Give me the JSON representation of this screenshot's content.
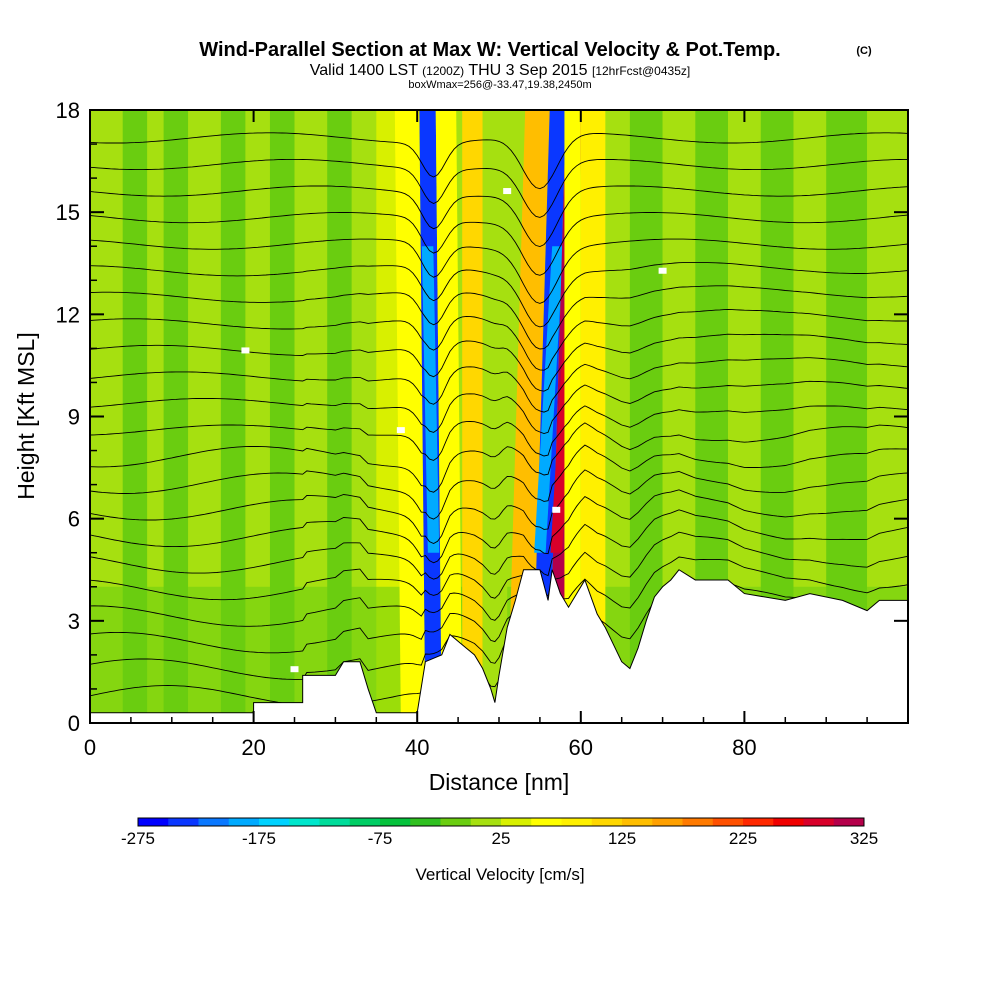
{
  "chart_data": {
    "type": "heatmap",
    "title": "Wind-Parallel Section at Max W: Vertical Velocity & Pot.Temp.",
    "title_tag": "(C)",
    "subtitle_a": "Valid 1400 LST",
    "subtitle_b": "(1200Z)",
    "subtitle_c": "THU 3 Sep 2015",
    "subtitle_d": "[12hrFcst@0435z]",
    "subtitle2": "boxWmax=256@-33.47,19.38,2450m",
    "xlabel": "Distance [nm]",
    "ylabel": "Height [Kft MSL]",
    "xlim": [
      0,
      100
    ],
    "ylim": [
      0,
      18
    ],
    "x_ticks": [
      0,
      20,
      40,
      60,
      80
    ],
    "y_ticks": [
      0,
      3,
      6,
      9,
      12,
      15,
      18
    ],
    "colorbar": {
      "label": "Vertical Velocity [cm/s]",
      "tick_labels": [
        -275,
        -175,
        -75,
        25,
        125,
        225,
        325
      ],
      "range": [
        -275,
        325
      ],
      "colors": [
        "#0000ff",
        "#0a37ff",
        "#0a78ff",
        "#00aaff",
        "#00d2ff",
        "#00e6cc",
        "#00dc9a",
        "#00cd64",
        "#05c23c",
        "#30c020",
        "#6acd10",
        "#a6e010",
        "#d8f000",
        "#ffff00",
        "#fff000",
        "#ffd700",
        "#ffbe00",
        "#ffa000",
        "#ff7a00",
        "#ff5000",
        "#ff2800",
        "#f00000",
        "#d8002a",
        "#b4004a"
      ]
    },
    "vertical_velocity_features": [
      {
        "x": 40.0,
        "w": 60
      },
      {
        "x": 42.0,
        "w": -230
      },
      {
        "x": 44.5,
        "w": 60
      },
      {
        "x": 46.5,
        "w": 120
      },
      {
        "x": 49.5,
        "w": 20
      },
      {
        "x": 52.5,
        "w": 130
      },
      {
        "x": 55.0,
        "w": -230
      },
      {
        "x": 57.0,
        "w": 320
      },
      {
        "x": 59.0,
        "w": 60
      },
      {
        "x": 62.0,
        "w": 80
      }
    ],
    "terrain_kft": [
      [
        0,
        0.3
      ],
      [
        20,
        0.3
      ],
      [
        20,
        0.6
      ],
      [
        26,
        0.6
      ],
      [
        26,
        1.4
      ],
      [
        30,
        1.4
      ],
      [
        31,
        1.8
      ],
      [
        33,
        1.8
      ],
      [
        34,
        1.0
      ],
      [
        35,
        0.3
      ],
      [
        40,
        0.3
      ],
      [
        41,
        1.8
      ],
      [
        43,
        2.0
      ],
      [
        44,
        2.6
      ],
      [
        46,
        2.2
      ],
      [
        47,
        2.0
      ],
      [
        48,
        1.6
      ],
      [
        49,
        1.0
      ],
      [
        49.5,
        0.6
      ],
      [
        50,
        1.4
      ],
      [
        51,
        2.8
      ],
      [
        52,
        3.6
      ],
      [
        53,
        4.5
      ],
      [
        55,
        4.5
      ],
      [
        56,
        3.6
      ],
      [
        56.5,
        4.5
      ],
      [
        57.5,
        3.8
      ],
      [
        58.5,
        3.4
      ],
      [
        59.5,
        3.8
      ],
      [
        60.5,
        4.2
      ],
      [
        62,
        3.2
      ],
      [
        63,
        2.8
      ],
      [
        64,
        2.3
      ],
      [
        65,
        1.8
      ],
      [
        66,
        1.6
      ],
      [
        67,
        2.2
      ],
      [
        68,
        3.0
      ],
      [
        69,
        3.7
      ],
      [
        70,
        4.0
      ],
      [
        71,
        4.2
      ],
      [
        72,
        4.5
      ],
      [
        74,
        4.2
      ],
      [
        78,
        4.2
      ],
      [
        80,
        3.8
      ],
      [
        85,
        3.6
      ],
      [
        88,
        3.8
      ],
      [
        92,
        3.6
      ],
      [
        95,
        3.3
      ],
      [
        96.5,
        3.6
      ],
      [
        100,
        3.6
      ]
    ],
    "theta_contours": 22
  }
}
